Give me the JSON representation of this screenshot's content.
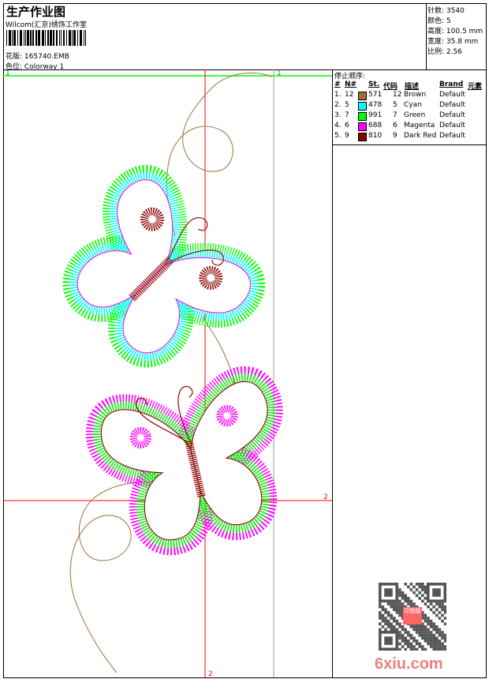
{
  "header": {
    "title": "生产作业图",
    "company": "Wilcom(汇京)绣饰工作室",
    "design_label": "花版:",
    "design_value": "165740.EMB",
    "colorway_label": "色位:",
    "colorway_value": "Colorway 1"
  },
  "stats": [
    {
      "label": "针数:",
      "value": "3540"
    },
    {
      "label": "颜色:",
      "value": "5"
    },
    {
      "label": "高度:",
      "value": "100.5 mm"
    },
    {
      "label": "宽度:",
      "value": "35.8 mm"
    },
    {
      "label": "比例:",
      "value": "2.56"
    }
  ],
  "legend": {
    "title": "停止顺序:",
    "headers": [
      "#",
      "N#",
      "St.",
      "代码",
      "描述",
      "Brand",
      "元素"
    ],
    "rows": [
      {
        "idx": "1.",
        "n": "12",
        "color": "#a0703c",
        "st": "571",
        "code": "12",
        "desc": "Brown",
        "brand": "Default"
      },
      {
        "idx": "2.",
        "n": "5",
        "color": "#00ffff",
        "st": "478",
        "code": "5",
        "desc": "Cyan",
        "brand": "Default"
      },
      {
        "idx": "3.",
        "n": "7",
        "color": "#00ff00",
        "st": "991",
        "code": "7",
        "desc": "Green",
        "brand": "Default"
      },
      {
        "idx": "4.",
        "n": "6",
        "color": "#ff00ff",
        "st": "688",
        "code": "6",
        "desc": "Magenta",
        "brand": "Default"
      },
      {
        "idx": "5.",
        "n": "9",
        "color": "#8b0000",
        "st": "810",
        "code": "9",
        "desc": "Dark Red",
        "brand": "Default"
      }
    ]
  },
  "guides": {
    "green_label_left": "1",
    "green_label_right": "1",
    "red_label_right": "2",
    "red_label_bottom": "2"
  },
  "watermark": {
    "text": "6xiu.com",
    "seal": "印图版"
  }
}
